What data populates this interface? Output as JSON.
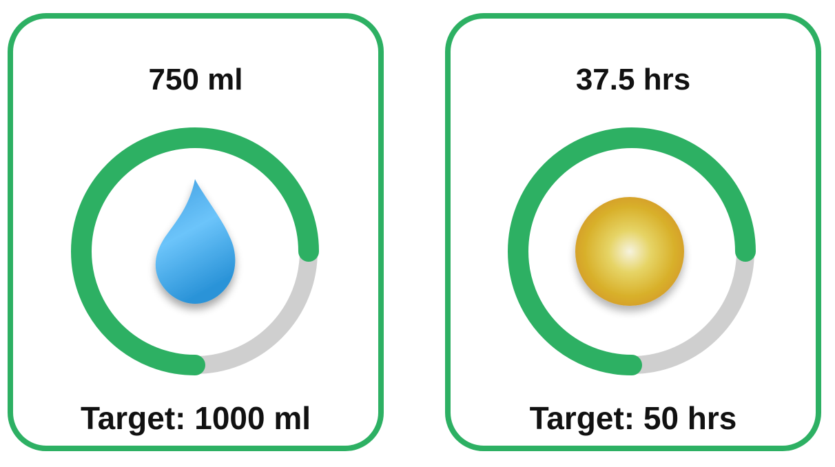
{
  "cards": [
    {
      "value_text": "750 ml",
      "target_text": "Target: 1000 ml",
      "progress": 0.75,
      "icon": "water-drop-icon"
    },
    {
      "value_text": "37.5 hrs",
      "target_text": "Target: 50 hrs",
      "progress": 0.75,
      "icon": "sun-icon"
    }
  ],
  "colors": {
    "accent": "#2db063",
    "track": "#cfcfcf",
    "text": "#111111"
  }
}
